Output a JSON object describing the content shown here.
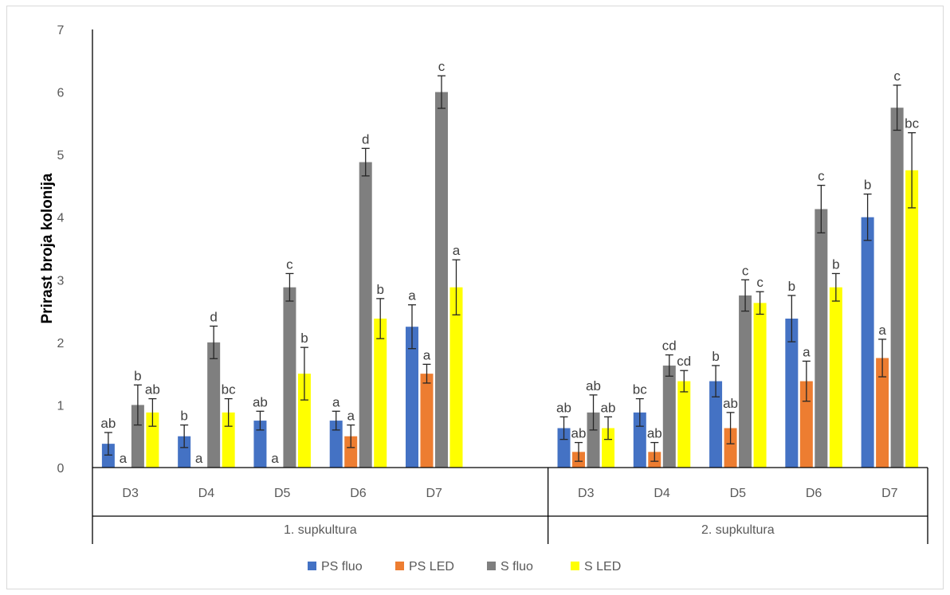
{
  "chart_data": {
    "type": "bar",
    "title": "",
    "xlabel": "",
    "ylabel": "Prirast broja kolonija",
    "ylim": [
      0,
      7
    ],
    "yticks": [
      0,
      1,
      2,
      3,
      4,
      5,
      6,
      7
    ],
    "grid": false,
    "legend_position": "bottom",
    "groups": [
      {
        "label": "1. supkultura",
        "categories": [
          "D3",
          "D4",
          "D5",
          "D6",
          "D7"
        ]
      },
      {
        "label": "2. supkultura",
        "categories": [
          "D3",
          "D4",
          "D5",
          "D6",
          "D7"
        ]
      }
    ],
    "series": [
      {
        "name": "PS fluo",
        "color": "#4472c4",
        "values": [
          0.38,
          0.5,
          0.75,
          0.75,
          2.25,
          0.63,
          0.88,
          1.38,
          2.38,
          4.0
        ],
        "errors": [
          0.18,
          0.18,
          0.15,
          0.15,
          0.35,
          0.18,
          0.22,
          0.25,
          0.37,
          0.37
        ],
        "labels": [
          "ab",
          "b",
          "ab",
          "a",
          "a",
          "ab",
          "bc",
          "b",
          "b",
          "b"
        ]
      },
      {
        "name": "PS LED",
        "color": "#ed7d31",
        "values": [
          0,
          0,
          0,
          0.5,
          1.5,
          0.25,
          0.25,
          0.63,
          1.38,
          1.75
        ],
        "errors": [
          0,
          0,
          0,
          0.18,
          0.15,
          0.15,
          0.15,
          0.25,
          0.32,
          0.3
        ],
        "labels": [
          "a",
          "a",
          "a",
          "a",
          "a",
          "ab",
          "ab",
          "ab",
          "a",
          "a"
        ]
      },
      {
        "name": "S fluo",
        "color": "#7f7f7f",
        "values": [
          1.0,
          2.0,
          2.88,
          4.88,
          6.0,
          0.88,
          1.63,
          2.75,
          4.13,
          5.75
        ],
        "errors": [
          0.32,
          0.26,
          0.22,
          0.22,
          0.26,
          0.28,
          0.17,
          0.25,
          0.38,
          0.36
        ],
        "labels": [
          "b",
          "d",
          "c",
          "d",
          "c",
          "ab",
          "cd",
          "c",
          "c",
          "c"
        ]
      },
      {
        "name": "S LED",
        "color": "#ffff00",
        "values": [
          0.88,
          0.88,
          1.5,
          2.38,
          2.88,
          0.63,
          1.38,
          2.63,
          2.88,
          4.75
        ],
        "errors": [
          0.22,
          0.22,
          0.42,
          0.32,
          0.44,
          0.18,
          0.17,
          0.18,
          0.22,
          0.6
        ],
        "labels": [
          "ab",
          "bc",
          "b",
          "b",
          "a",
          "ab",
          "cd",
          "c",
          "b",
          "bc"
        ]
      }
    ]
  }
}
